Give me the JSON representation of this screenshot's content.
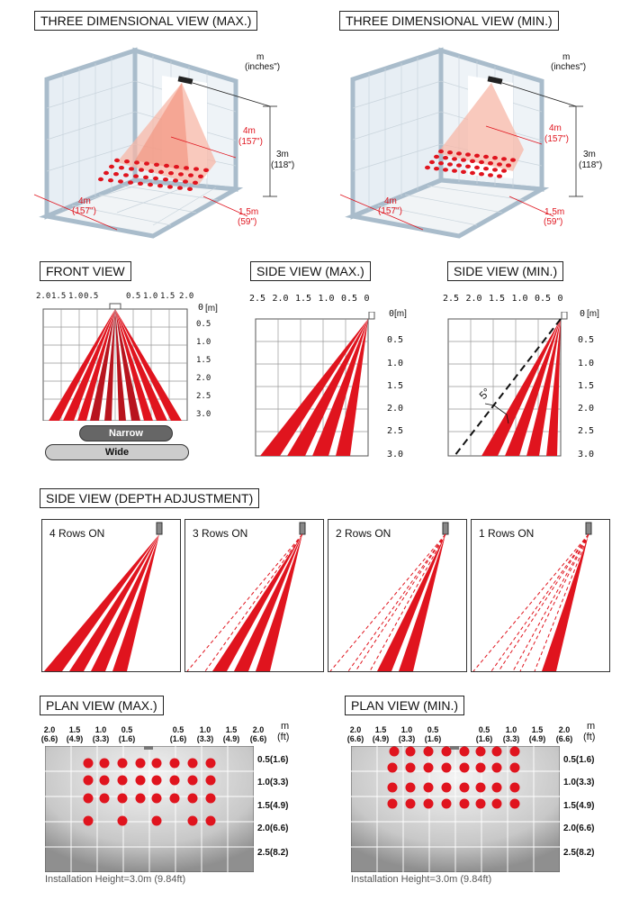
{
  "three_d": {
    "max": {
      "title": "THREE DIMENSIONAL VIEW (MAX.)",
      "unit_m": "m",
      "unit_in": "(inches\")",
      "depth_m": "4m",
      "depth_in": "(157\")",
      "height_m": "3m",
      "height_in": "(118\")",
      "bottom_depth_m": "4m",
      "bottom_depth_in": "(157\")",
      "width_m": "1.5m",
      "width_in": "(59\")"
    },
    "min": {
      "title": "THREE DIMENSIONAL VIEW (MIN.)",
      "unit_m": "m",
      "unit_in": "(inches\")",
      "depth_m": "4m",
      "depth_in": "(157\")",
      "height_m": "3m",
      "height_in": "(118\")",
      "bottom_depth_m": "4m",
      "bottom_depth_in": "(157\")",
      "width_m": "1.5m",
      "width_in": "(59\")"
    }
  },
  "front_view": {
    "title": "FRONT VIEW",
    "x_ticks": [
      "2.0",
      "1.5",
      "1.0",
      "0.5",
      "0.5",
      "1.0",
      "1.5",
      "2.0"
    ],
    "y_ticks": [
      "0",
      "0.5",
      "1.0",
      "1.5",
      "2.0",
      "2.5",
      "3.0"
    ],
    "y_unit": "[m]",
    "narrow_label": "Narrow",
    "wide_label": "Wide"
  },
  "side_max": {
    "title": "SIDE VIEW (MAX.)",
    "x_ticks": [
      "2.5",
      "2.0",
      "1.5",
      "1.0",
      "0.5",
      "0"
    ],
    "y_ticks": [
      "0",
      "0.5",
      "1.0",
      "1.5",
      "2.0",
      "2.5",
      "3.0"
    ],
    "y_unit": "[m]"
  },
  "side_min": {
    "title": "SIDE VIEW (MIN.)",
    "x_ticks": [
      "2.5",
      "2.0",
      "1.5",
      "1.0",
      "0.5",
      "0"
    ],
    "y_ticks": [
      "0",
      "0.5",
      "1.0",
      "1.5",
      "2.0",
      "2.5",
      "3.0"
    ],
    "y_unit": "[m]",
    "angle_label": "5°"
  },
  "depth": {
    "title": "SIDE VIEW (DEPTH ADJUSTMENT)",
    "panels": [
      {
        "label": "4 Rows ON",
        "rows_on": 4
      },
      {
        "label": "3 Rows ON",
        "rows_on": 3
      },
      {
        "label": "2 Rows ON",
        "rows_on": 2
      },
      {
        "label": "1 Rows ON",
        "rows_on": 1
      }
    ]
  },
  "plan_max": {
    "title": "PLAN VIEW (MAX.)",
    "unit_top": "m",
    "unit_bottom": "(ft)",
    "x_ticks": [
      [
        "2.0",
        "(6.6)"
      ],
      [
        "1.5",
        "(4.9)"
      ],
      [
        "1.0",
        "(3.3)"
      ],
      [
        "0.5",
        "(1.6)"
      ],
      [
        "0.5",
        "(1.6)"
      ],
      [
        "1.0",
        "(3.3)"
      ],
      [
        "1.5",
        "(4.9)"
      ],
      [
        "2.0",
        "(6.6)"
      ]
    ],
    "y_ticks": [
      "0.5(1.6)",
      "1.0(3.3)",
      "1.5(4.9)",
      "2.0(6.6)",
      "2.5(8.2)"
    ],
    "footer": "Installation Height=3.0m (9.84ft)"
  },
  "plan_min": {
    "title": "PLAN VIEW (MIN.)",
    "unit_top": "m",
    "unit_bottom": "(ft)",
    "x_ticks": [
      [
        "2.0",
        "(6.6)"
      ],
      [
        "1.5",
        "(4.9)"
      ],
      [
        "1.0",
        "(3.3)"
      ],
      [
        "0.5",
        "(1.6)"
      ],
      [
        "0.5",
        "(1.6)"
      ],
      [
        "1.0",
        "(3.3)"
      ],
      [
        "1.5",
        "(4.9)"
      ],
      [
        "2.0",
        "(6.6)"
      ]
    ],
    "y_ticks": [
      "0.5(1.6)",
      "1.0(3.3)",
      "1.5(4.9)",
      "2.0(6.6)",
      "2.5(8.2)"
    ],
    "footer": "Installation Height=3.0m (9.84ft)"
  },
  "colors": {
    "beam": "#e0141e",
    "beam_dark": "#b8141e",
    "wall": "#a9bccb",
    "grid": "#999999"
  }
}
